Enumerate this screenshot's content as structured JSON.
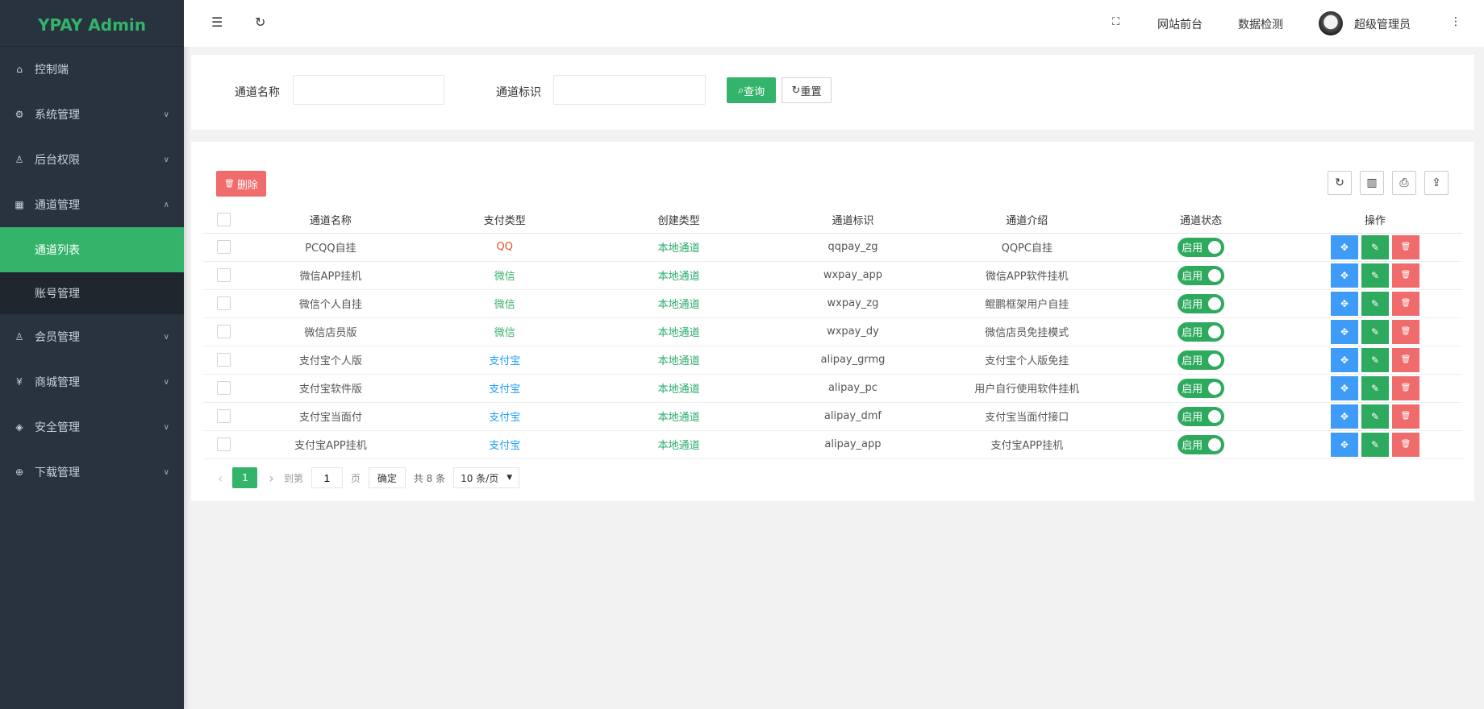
{
  "app": {
    "logo": "YPAY Admin"
  },
  "sidebar": {
    "items": [
      {
        "label": "控制端",
        "icon": "home-icon",
        "glyph": "⌂",
        "chevron": ""
      },
      {
        "label": "系统管理",
        "icon": "gear-icon",
        "glyph": "⚙",
        "chevron": "∨"
      },
      {
        "label": "后台权限",
        "icon": "user-icon",
        "glyph": "♙",
        "chevron": "∨"
      },
      {
        "label": "通道管理",
        "icon": "apps-icon",
        "glyph": "▦",
        "chevron": "∧"
      },
      {
        "label": "会员管理",
        "icon": "user-icon",
        "glyph": "♙",
        "chevron": "∨"
      },
      {
        "label": "商城管理",
        "icon": "yen-icon",
        "glyph": "¥",
        "chevron": "∨"
      },
      {
        "label": "安全管理",
        "icon": "diamond-icon",
        "glyph": "◈",
        "chevron": "∨"
      },
      {
        "label": "下载管理",
        "icon": "download-icon",
        "glyph": "⊕",
        "chevron": "∨"
      }
    ],
    "subitems": [
      {
        "label": "通道列表",
        "active": true
      },
      {
        "label": "账号管理",
        "active": false
      }
    ]
  },
  "header": {
    "frontend": "网站前台",
    "data_check": "数据检测",
    "user": "超级管理员"
  },
  "search": {
    "name_label": "通道名称",
    "name_value": "",
    "ident_label": "通道标识",
    "ident_value": "",
    "query": "查询",
    "reset": "重置"
  },
  "toolbar": {
    "delete": "删除"
  },
  "colors": {
    "accent": "#34b36a",
    "qq": "#e0542c",
    "wechat": "#3db36a",
    "alipay": "#1e9fff",
    "local": "#2bab6c",
    "edit": "#2eaa5f",
    "move": "#3e9bf8",
    "danger": "#f06b6b"
  },
  "table": {
    "headers": [
      "通道名称",
      "支付类型",
      "创建类型",
      "通道标识",
      "通道介绍",
      "通道状态",
      "操作"
    ],
    "rows": [
      {
        "name": "PCQQ自挂",
        "pay": "QQ",
        "pay_kind": "qq",
        "create": "本地通道",
        "ident": "qqpay_zg",
        "intro": "QQPC自挂",
        "status": "启用"
      },
      {
        "name": "微信APP挂机",
        "pay": "微信",
        "pay_kind": "wechat",
        "create": "本地通道",
        "ident": "wxpay_app",
        "intro": "微信APP软件挂机",
        "status": "启用"
      },
      {
        "name": "微信个人自挂",
        "pay": "微信",
        "pay_kind": "wechat",
        "create": "本地通道",
        "ident": "wxpay_zg",
        "intro": "鲲鹏框架用户自挂",
        "status": "启用"
      },
      {
        "name": "微信店员版",
        "pay": "微信",
        "pay_kind": "wechat",
        "create": "本地通道",
        "ident": "wxpay_dy",
        "intro": "微信店员免挂模式",
        "status": "启用"
      },
      {
        "name": "支付宝个人版",
        "pay": "支付宝",
        "pay_kind": "alipay",
        "create": "本地通道",
        "ident": "alipay_grmg",
        "intro": "支付宝个人版免挂",
        "status": "启用"
      },
      {
        "name": "支付宝软件版",
        "pay": "支付宝",
        "pay_kind": "alipay",
        "create": "本地通道",
        "ident": "alipay_pc",
        "intro": "用户自行使用软件挂机",
        "status": "启用"
      },
      {
        "name": "支付宝当面付",
        "pay": "支付宝",
        "pay_kind": "alipay",
        "create": "本地通道",
        "ident": "alipay_dmf",
        "intro": "支付宝当面付接口",
        "status": "启用"
      },
      {
        "name": "支付宝APP挂机",
        "pay": "支付宝",
        "pay_kind": "alipay",
        "create": "本地通道",
        "ident": "alipay_app",
        "intro": "支付宝APP挂机",
        "status": "启用"
      }
    ]
  },
  "pagination": {
    "current": "1",
    "goto_label": "到第",
    "goto_value": "1",
    "page_label": "页",
    "confirm": "确定",
    "total": "共 8 条",
    "page_size": "10 条/页"
  }
}
